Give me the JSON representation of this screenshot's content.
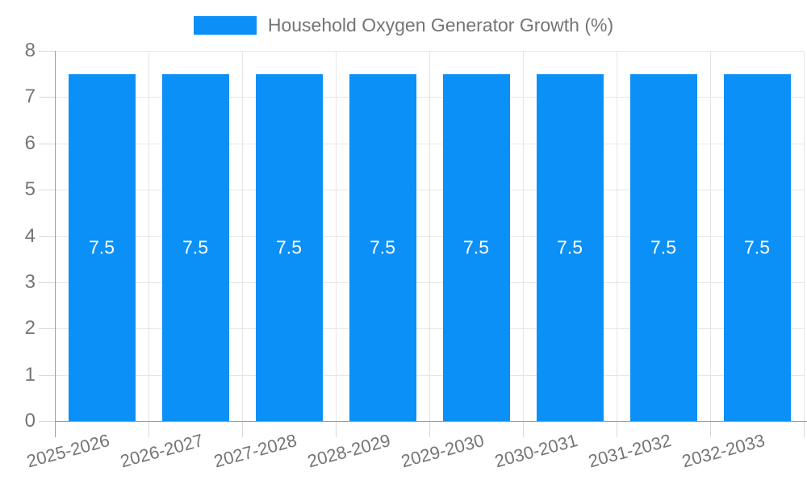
{
  "legend": {
    "label": "Household Oxygen Generator Growth (%)"
  },
  "chart_data": {
    "type": "bar",
    "title": "",
    "series_name": "Household Oxygen Generator Growth (%)",
    "categories": [
      "2025-2026",
      "2026-2027",
      "2027-2028",
      "2028-2029",
      "2029-2030",
      "2030-2031",
      "2031-2032",
      "2032-2033"
    ],
    "values": [
      7.5,
      7.5,
      7.5,
      7.5,
      7.5,
      7.5,
      7.5,
      7.5
    ],
    "bar_value_labels": [
      "7.5",
      "7.5",
      "7.5",
      "7.5",
      "7.5",
      "7.5",
      "7.5",
      "7.5"
    ],
    "xlabel": "",
    "ylabel": "",
    "ylim": [
      0,
      8
    ],
    "yticks": [
      0,
      1,
      2,
      3,
      4,
      5,
      6,
      7,
      8
    ],
    "grid": true,
    "legend_position": "top",
    "colors": {
      "bar": "#0b90f8",
      "bar_value_text": "#ffffff",
      "axis_text": "#757575",
      "axis_line": "#9e9e9e",
      "gridline": "#e6e6e6",
      "tick": "#d9d9d9",
      "background": "#ffffff"
    }
  }
}
